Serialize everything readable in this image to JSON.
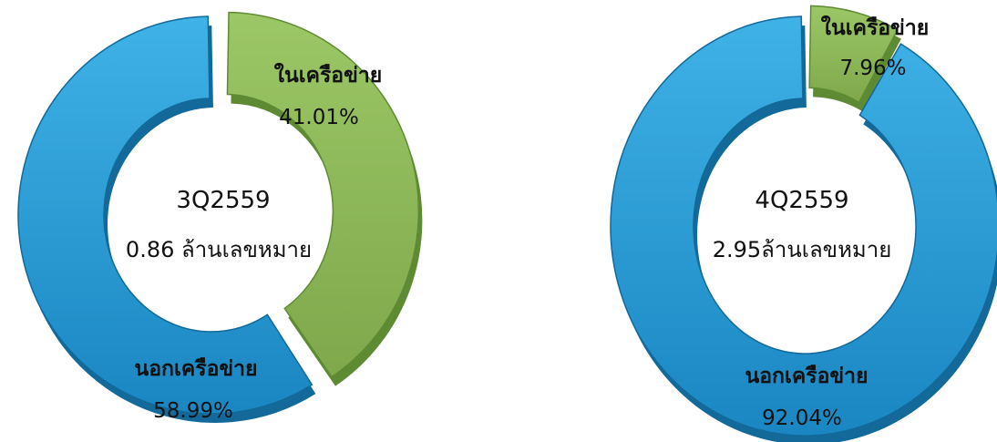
{
  "chart_data": [
    {
      "type": "pie",
      "donut": true,
      "center_title": "3Q2559",
      "center_subtitle": "0.86 ล้านเลขหมาย",
      "slices": [
        {
          "label": "ในเครือข่าย",
          "percent_label": "41.01%",
          "value": 41.01,
          "color": "#8cb957",
          "exploded": true
        },
        {
          "label": "นอกเครือข่าย",
          "percent_label": "58.99%",
          "value": 58.99,
          "color": "#1f98d3",
          "exploded": false
        }
      ]
    },
    {
      "type": "pie",
      "donut": true,
      "center_title": "4Q2559",
      "center_subtitle": "2.95ล้านเลขหมาย",
      "slices": [
        {
          "label": "ในเครือข่าย",
          "percent_label": "7.96%",
          "value": 7.96,
          "color": "#8cb957",
          "exploded": true
        },
        {
          "label": "นอกเครือข่าย",
          "percent_label": "92.04%",
          "value": 92.04,
          "color": "#1f98d3",
          "exploded": false
        }
      ]
    }
  ]
}
